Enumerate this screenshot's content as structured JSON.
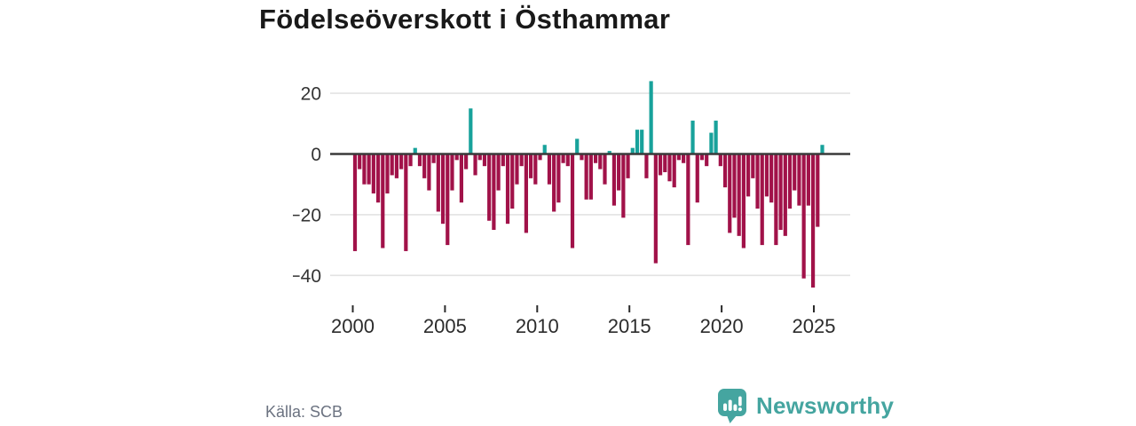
{
  "header": {
    "title": "Födelseöverskott i Östhammar"
  },
  "chart_data": {
    "type": "bar",
    "title": "Födelseöverskott i Östhammar",
    "frequency": "quarterly",
    "start_year": 2000,
    "values": [
      -32,
      -5,
      -10,
      -10,
      -13,
      -16,
      -31,
      -13,
      -7,
      -8,
      -5,
      -32,
      -4,
      2,
      -4,
      -8,
      -12,
      -3,
      -19,
      -23,
      -30,
      -12,
      -2,
      -16,
      -5,
      15,
      -7,
      -2,
      -4,
      -22,
      -25,
      -12,
      -4,
      -23,
      -18,
      -10,
      -4,
      -26,
      -8,
      -10,
      -2,
      3,
      -10,
      -19,
      -16,
      -3,
      -4,
      -31,
      5,
      -2,
      -15,
      -15,
      -3,
      -5,
      -10,
      1,
      -17,
      -12,
      -21,
      -8,
      2,
      8,
      8,
      -8,
      24,
      -36,
      -7,
      -6,
      -9,
      -11,
      -2,
      -3,
      -30,
      11,
      -16,
      -2,
      -4,
      7,
      11,
      -4,
      -11,
      -26,
      -21,
      -27,
      -31,
      -14,
      -8,
      -18,
      -30,
      -14,
      -16,
      -30,
      -25,
      -27,
      -18,
      -12,
      -17,
      -41,
      -17,
      -44,
      -24,
      3
    ],
    "x_ticks": [
      2000,
      2005,
      2010,
      2015,
      2020,
      2025
    ],
    "y_ticks": [
      20,
      0,
      -20,
      -40
    ],
    "ylim": [
      -46,
      26
    ],
    "grid": true,
    "legend": false,
    "positive_color": "#18a29b",
    "negative_color": "#a11249",
    "axis_color": "#3a3a3a",
    "gridline_color": "#e3e3e3",
    "tick_label_color": "#2b2b2b"
  },
  "footer": {
    "source": "Källa: SCB"
  },
  "logo": {
    "text": "Newsworthy",
    "color": "#45a5a0"
  }
}
